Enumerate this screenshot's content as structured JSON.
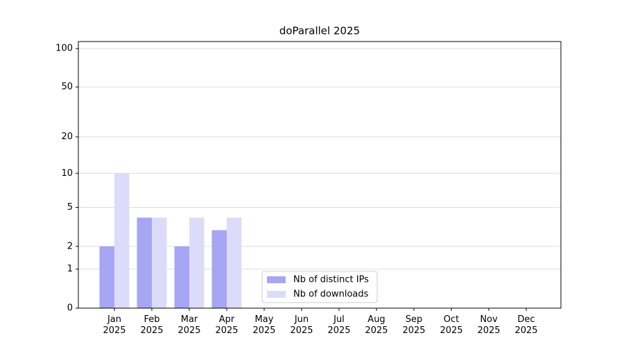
{
  "chart_data": {
    "type": "bar",
    "title": "doParallel 2025",
    "categories": [
      "Jan 2025",
      "Feb 2025",
      "Mar 2025",
      "Apr 2025",
      "May 2025",
      "Jun 2025",
      "Jul 2025",
      "Aug 2025",
      "Sep 2025",
      "Oct 2025",
      "Nov 2025",
      "Dec 2025"
    ],
    "series": [
      {
        "name": "Nb of distinct IPs",
        "color": "#a6a6f5",
        "values": [
          2,
          4,
          2,
          3,
          0,
          0,
          0,
          0,
          0,
          0,
          0,
          0
        ]
      },
      {
        "name": "Nb of downloads",
        "color": "#dcdcfa",
        "values": [
          10,
          4,
          4,
          4,
          0,
          0,
          0,
          0,
          0,
          0,
          0,
          0
        ]
      }
    ],
    "yscale": "log1p",
    "ylim": [
      0,
      113.5
    ],
    "yticks": [
      0,
      1,
      2,
      5,
      10,
      20,
      50,
      100
    ],
    "grid": true,
    "legend": "lower center"
  }
}
